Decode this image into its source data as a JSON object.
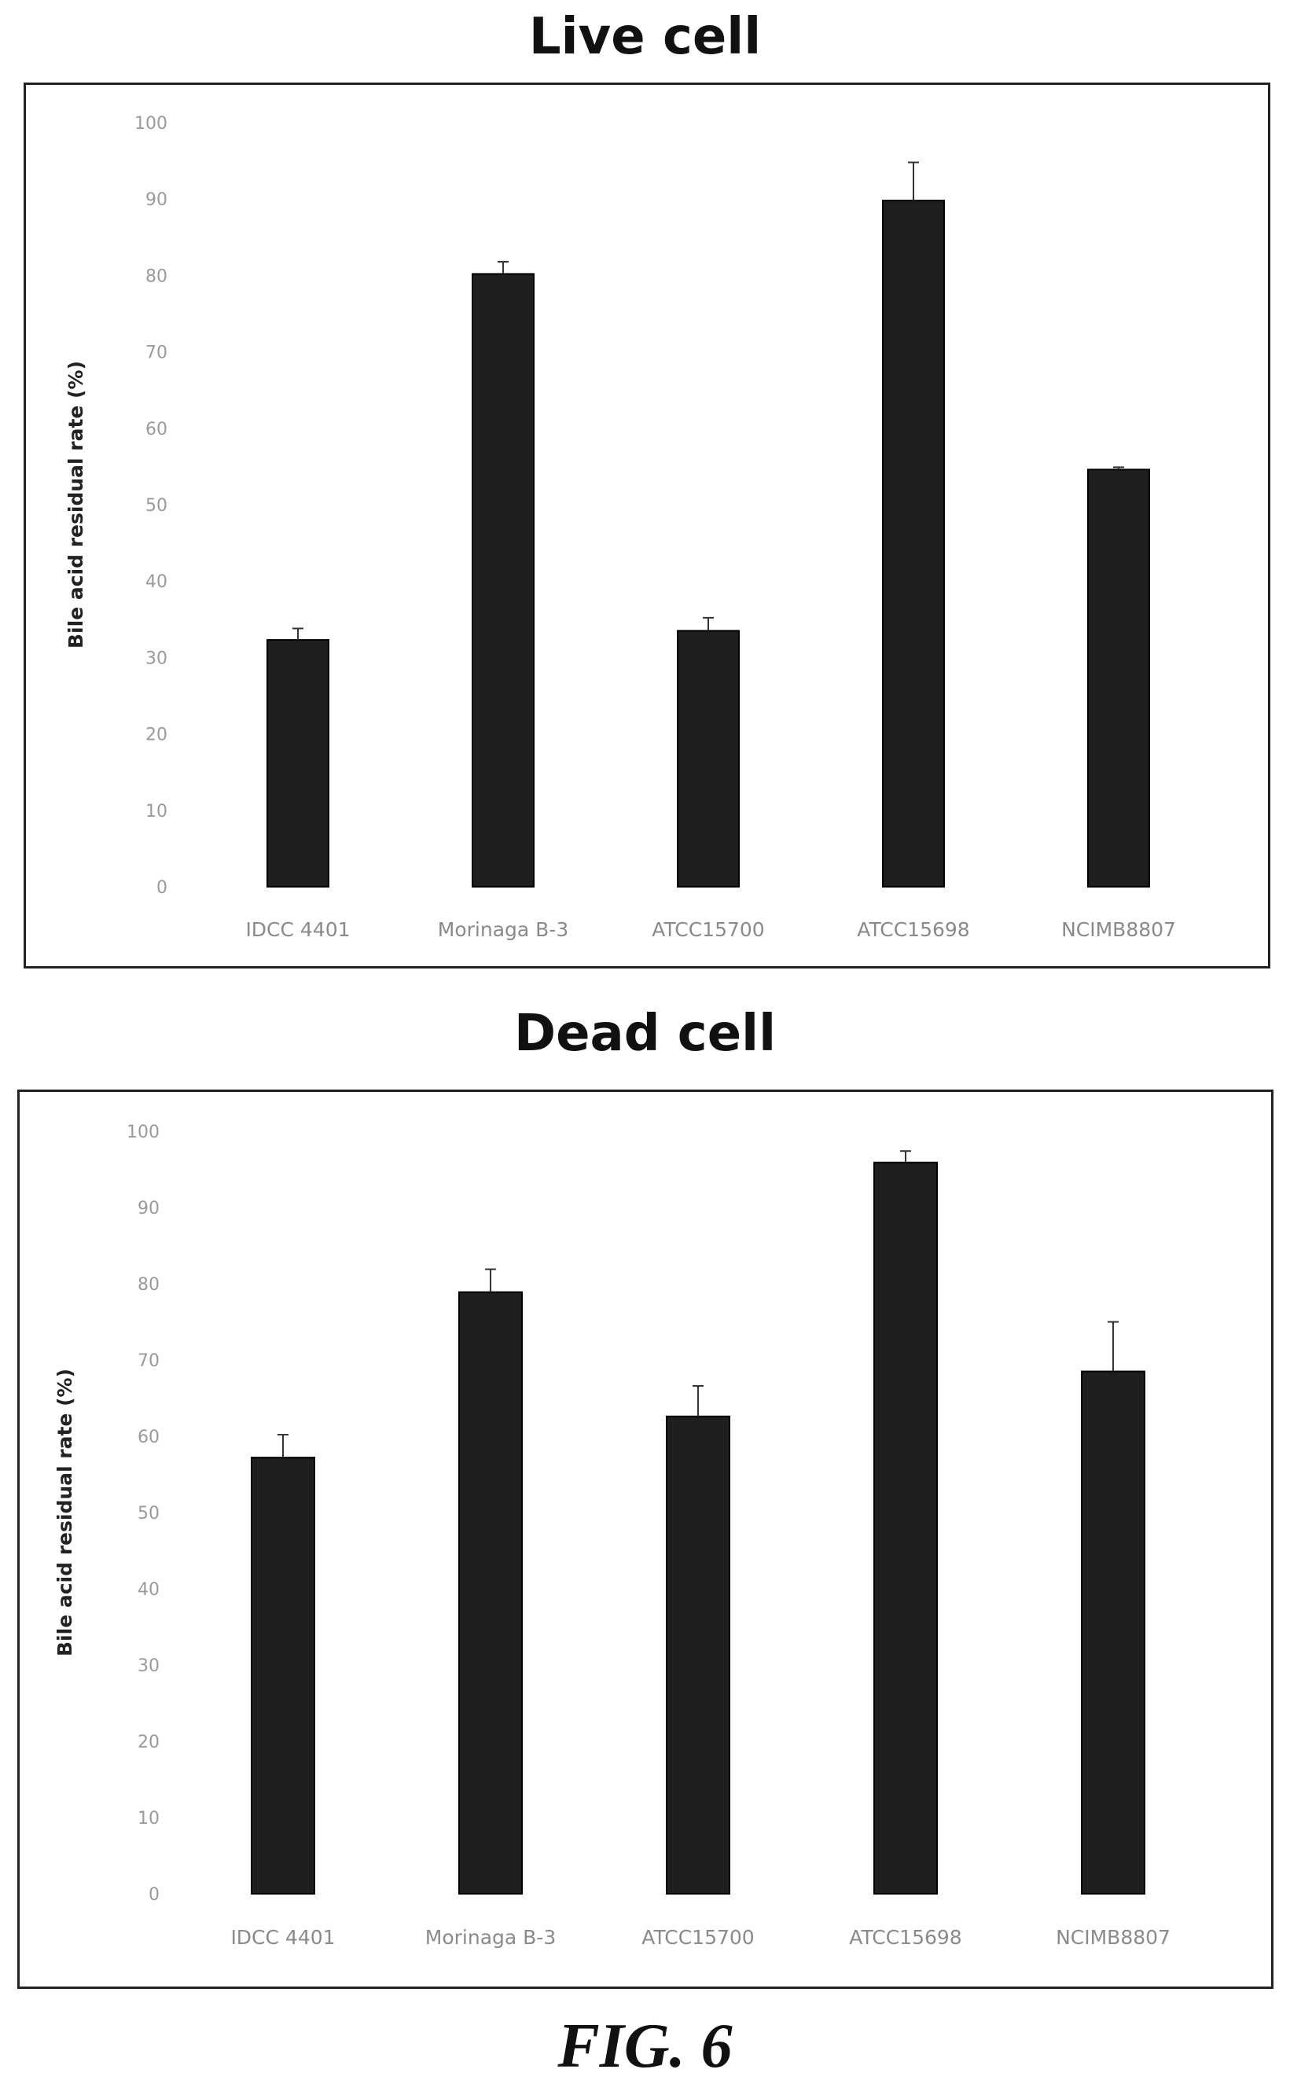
{
  "figure_label": "FIG. 6",
  "chart_data": [
    {
      "type": "bar",
      "title": "Live cell",
      "ylabel": "Bile acid residual rate (%)",
      "xlabel": "",
      "ylim": [
        0,
        100
      ],
      "yticks": [
        0,
        10,
        20,
        30,
        40,
        50,
        60,
        70,
        80,
        90,
        100
      ],
      "categories": [
        "IDCC 4401",
        "Morinaga B-3",
        "ATCC15700",
        "ATCC15698",
        "NCIMB8807"
      ],
      "values": [
        32.3,
        80.2,
        33.5,
        89.8,
        54.6
      ],
      "error": [
        1.5,
        1.6,
        1.7,
        5.0,
        0.3
      ],
      "bar_color": "#1e1e1e",
      "grid": false,
      "legend": "none"
    },
    {
      "type": "bar",
      "title": "Dead cell",
      "ylabel": "Bile acid residual rate (%)",
      "xlabel": "",
      "ylim": [
        0,
        100
      ],
      "yticks": [
        0,
        10,
        20,
        30,
        40,
        50,
        60,
        70,
        80,
        90,
        100
      ],
      "categories": [
        "IDCC 4401",
        "Morinaga B-3",
        "ATCC15700",
        "ATCC15698",
        "NCIMB8807"
      ],
      "values": [
        57.2,
        78.9,
        62.6,
        95.9,
        68.5
      ],
      "error": [
        3.0,
        3.0,
        4.0,
        1.5,
        6.5
      ],
      "bar_color": "#1e1e1e",
      "grid": false,
      "legend": "none"
    }
  ]
}
